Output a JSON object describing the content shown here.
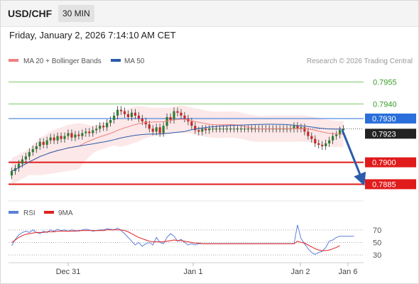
{
  "header": {
    "symbol": "USD/CHF",
    "timeframe": "30 MIN"
  },
  "datetime": "Friday, January 2, 2026 7:14:10 AM CET",
  "legend": {
    "ma20_label": "MA 20 + Bollinger Bands",
    "ma50_label": "MA 50",
    "ma20_color": "#f08080",
    "ma50_color": "#2a5caa",
    "copyright": "Research © 2026 Trading Central"
  },
  "indicator_legend": {
    "rsi_label": "RSI",
    "ma9_label": "9MA",
    "rsi_color": "#5b7fd8",
    "ma9_color": "#e02020"
  },
  "chart_data": [
    {
      "type": "line",
      "title": "USD/CHF",
      "ylim": [
        0.7875,
        0.7965
      ],
      "x_ticks": [
        "Dec 31",
        "Jan 1",
        "Jan 2",
        "Jan 6"
      ],
      "current_price": "0.7923",
      "levels": [
        {
          "value": 0.7955,
          "label": "0.7955",
          "kind": "resistance",
          "color": "#7cc86a"
        },
        {
          "value": 0.794,
          "label": "0.7940",
          "kind": "resistance",
          "color": "#7cc86a"
        },
        {
          "value": 0.793,
          "label": "0.7930",
          "kind": "pivot",
          "color": "#2a6fdb"
        },
        {
          "value": 0.79,
          "label": "0.7900",
          "kind": "support",
          "color": "#e01b1b"
        },
        {
          "value": 0.7885,
          "label": "0.7885",
          "kind": "support",
          "color": "#e01b1b"
        }
      ],
      "forecast_arrow": {
        "from": 0.7923,
        "to": 0.7885,
        "color": "#2a5caa"
      },
      "series": [
        {
          "name": "MA 20 + Bollinger Bands",
          "color": "#f08080"
        },
        {
          "name": "MA 50",
          "color": "#2a5caa"
        }
      ],
      "close": [
        0.7894,
        0.7896,
        0.7899,
        0.7902,
        0.7904,
        0.7907,
        0.7909,
        0.7911,
        0.7914,
        0.7912,
        0.7915,
        0.7917,
        0.7915,
        0.7918,
        0.7916,
        0.7918,
        0.792,
        0.7917,
        0.7919,
        0.7918,
        0.792,
        0.7921,
        0.792,
        0.7922,
        0.7923,
        0.7925,
        0.7924,
        0.7927,
        0.7929,
        0.7932,
        0.7936,
        0.7935,
        0.7933,
        0.7931,
        0.7934,
        0.7932,
        0.793,
        0.7928,
        0.7926,
        0.7923,
        0.7921,
        0.7924,
        0.792,
        0.7925,
        0.7931,
        0.7929,
        0.7935,
        0.7934,
        0.7932,
        0.793,
        0.7928,
        0.7925,
        0.7922,
        0.7921,
        0.7923,
        0.7922,
        0.7923,
        0.7923,
        0.7923,
        0.7923,
        0.7923,
        0.7923,
        0.7923,
        0.7923,
        0.7923,
        0.7923,
        0.7923,
        0.7923,
        0.7923,
        0.7923,
        0.7923,
        0.7923,
        0.7923,
        0.7923,
        0.7923,
        0.7923,
        0.7923,
        0.7923,
        0.7923,
        0.7923,
        0.7925,
        0.7923,
        0.7924,
        0.7921,
        0.7918,
        0.7916,
        0.7913,
        0.7912,
        0.7911,
        0.7913,
        0.7915,
        0.7918,
        0.7919,
        0.7922,
        0.7923
      ]
    },
    {
      "type": "line",
      "title": "RSI",
      "ylim": [
        20,
        80
      ],
      "y_ticks": [
        70,
        50,
        30
      ],
      "series": [
        {
          "name": "RSI",
          "color": "#5b7fd8",
          "values": [
            45,
            55,
            62,
            66,
            68,
            66,
            70,
            66,
            64,
            68,
            66,
            70,
            68,
            71,
            69,
            70,
            68,
            70,
            69,
            68,
            70,
            71,
            70,
            68,
            69,
            70,
            70,
            72,
            71,
            70,
            73,
            69,
            64,
            58,
            52,
            46,
            50,
            44,
            48,
            50,
            46,
            58,
            50,
            48,
            58,
            64,
            60,
            52,
            55,
            50,
            46,
            48,
            46,
            48,
            48,
            48,
            48,
            48,
            48,
            48,
            48,
            48,
            48,
            48,
            48,
            48,
            48,
            48,
            48,
            48,
            48,
            48,
            48,
            48,
            48,
            48,
            48,
            48,
            48,
            48,
            48,
            78,
            56,
            48,
            40,
            34,
            31,
            34,
            36,
            42,
            52,
            54,
            58,
            60,
            60,
            60,
            60,
            60
          ]
        },
        {
          "name": "9MA",
          "color": "#e02020",
          "values": [
            50,
            54,
            58,
            61,
            63,
            64,
            65,
            66,
            66,
            66,
            67,
            67,
            67,
            68,
            68,
            68,
            68,
            68,
            68,
            69,
            69,
            69,
            69,
            69,
            69,
            69,
            69,
            70,
            70,
            70,
            70,
            70,
            69,
            67,
            64,
            61,
            58,
            56,
            54,
            52,
            51,
            51,
            51,
            51,
            52,
            53,
            54,
            53,
            53,
            52,
            51,
            50,
            49,
            49,
            48,
            48,
            48,
            48,
            48,
            48,
            48,
            48,
            48,
            48,
            48,
            48,
            48,
            48,
            48,
            48,
            48,
            48,
            48,
            48,
            48,
            48,
            48,
            48,
            48,
            48,
            48,
            52,
            50,
            49,
            46,
            43,
            40,
            38,
            37,
            37,
            38,
            40,
            42,
            45
          ]
        }
      ]
    }
  ]
}
